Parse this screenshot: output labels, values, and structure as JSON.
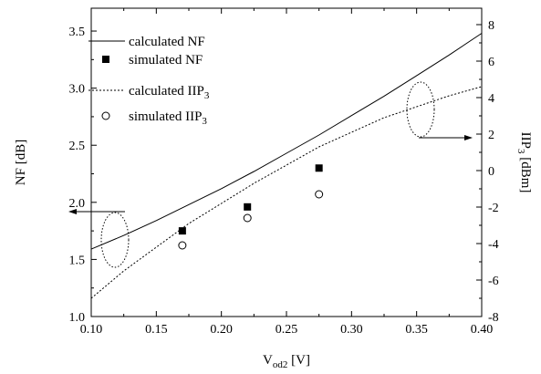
{
  "chart_data": {
    "type": "line",
    "x_axis": {
      "label_main": "V",
      "label_sub": "od2",
      "label_unit": " [V]",
      "ticks": [
        "0.10",
        "0.15",
        "0.20",
        "0.25",
        "0.30",
        "0.35",
        "0.40"
      ],
      "range": [
        0.1,
        0.4
      ]
    },
    "y_left": {
      "label": "NF [dB]",
      "ticks": [
        "1.0",
        "1.5",
        "2.0",
        "2.5",
        "3.0",
        "3.5"
      ],
      "range": [
        1.0,
        3.7
      ]
    },
    "y_right": {
      "label_main": "IIP",
      "label_sub": "3",
      "label_unit": " [dBm]",
      "ticks": [
        "-8",
        "-6",
        "-4",
        "-2",
        "0",
        "2",
        "4",
        "6",
        "8"
      ],
      "range": [
        -8,
        8.9
      ]
    },
    "series": [
      {
        "name": "calculated NF",
        "axis": "left",
        "style": "solid-line",
        "x": [
          0.1,
          0.125,
          0.15,
          0.175,
          0.2,
          0.225,
          0.25,
          0.275,
          0.3,
          0.325,
          0.35,
          0.375,
          0.4
        ],
        "y": [
          1.59,
          1.71,
          1.84,
          1.98,
          2.12,
          2.27,
          2.43,
          2.59,
          2.76,
          2.93,
          3.11,
          3.29,
          3.48
        ]
      },
      {
        "name": "simulated NF",
        "axis": "left",
        "style": "filled-square",
        "x": [
          0.17,
          0.22,
          0.275
        ],
        "y": [
          1.75,
          1.96,
          2.3
        ]
      },
      {
        "name_main": "calculated IIP",
        "name_sub": "3",
        "axis": "right",
        "style": "dashed-line",
        "x": [
          0.1,
          0.125,
          0.15,
          0.175,
          0.2,
          0.225,
          0.25,
          0.275,
          0.3,
          0.325,
          0.35,
          0.375,
          0.4
        ],
        "y": [
          -7.0,
          -5.5,
          -4.2,
          -2.9,
          -1.8,
          -0.7,
          0.3,
          1.3,
          2.1,
          2.9,
          3.5,
          4.1,
          4.6
        ]
      },
      {
        "name_main": "simulated IIP",
        "name_sub": "3",
        "axis": "right",
        "style": "open-circle",
        "x": [
          0.17,
          0.22,
          0.275
        ],
        "y": [
          -4.1,
          -2.6,
          -1.3
        ]
      }
    ],
    "legend_position": "top-left",
    "grid": false
  }
}
